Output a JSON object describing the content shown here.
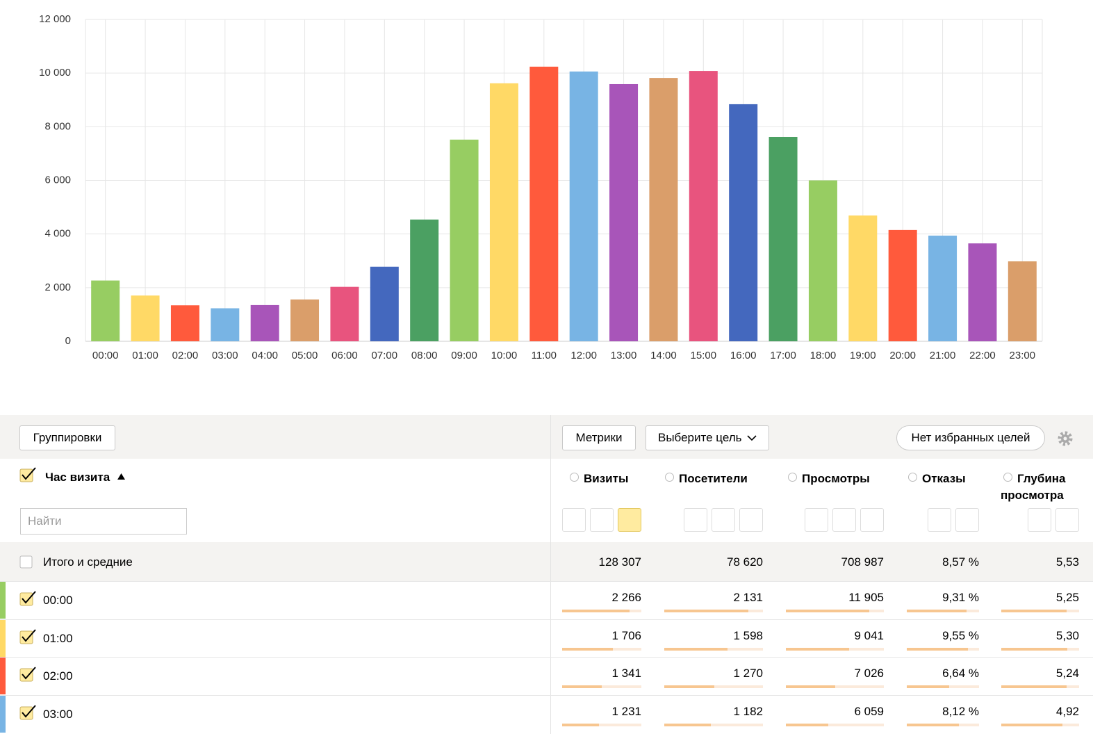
{
  "chart_data": {
    "type": "bar",
    "categories": [
      "00:00",
      "01:00",
      "02:00",
      "03:00",
      "04:00",
      "05:00",
      "06:00",
      "07:00",
      "08:00",
      "09:00",
      "10:00",
      "11:00",
      "12:00",
      "13:00",
      "14:00",
      "15:00",
      "16:00",
      "17:00",
      "18:00",
      "19:00",
      "20:00",
      "21:00",
      "22:00",
      "23:00"
    ],
    "values": [
      2266,
      1706,
      1341,
      1231,
      1350,
      1560,
      2030,
      2780,
      4540,
      7520,
      9620,
      10240,
      10060,
      9590,
      9820,
      10080,
      8840,
      7620,
      6000,
      4690,
      4150,
      3940,
      3650,
      2980
    ],
    "colors": [
      "#97cd62",
      "#ffd966",
      "#ff5a3c",
      "#78b4e4",
      "#a855b9",
      "#da9e6a",
      "#e8547e",
      "#4468be",
      "#4ba062",
      "#97cd62",
      "#ffd966",
      "#ff5a3c",
      "#78b4e4",
      "#a855b9",
      "#da9e6a",
      "#e8547e",
      "#4468be",
      "#4ba062",
      "#97cd62",
      "#ffd966",
      "#ff5a3c",
      "#78b4e4",
      "#a855b9",
      "#da9e6a"
    ],
    "ylim": [
      0,
      12000
    ],
    "yticks": [
      0,
      {
        "value": 2000,
        "label": "2 000"
      },
      {
        "value": 4000,
        "label": "4 000"
      },
      {
        "value": 6000,
        "label": "6 000"
      },
      {
        "value": 8000,
        "label": "8 000"
      },
      {
        "value": 10000,
        "label": "10 000"
      },
      {
        "value": 12000,
        "label": "12 000"
      }
    ],
    "grid": true
  },
  "toolbar": {
    "groupings": "Группировки",
    "metrics": "Метрики",
    "goal": "Выберите цель",
    "favorites": "Нет избранных целей"
  },
  "table": {
    "dimension": "Час визита",
    "search_placeholder": "Найти",
    "columns": [
      "Визиты",
      "Посетители",
      "Просмотры",
      "Отказы",
      "Глубина просмотра"
    ],
    "totals": {
      "label": "Итого и средние",
      "cells": [
        "128 307",
        "78 620",
        "708 987",
        "8,57 %",
        "5,53"
      ]
    },
    "rows": [
      {
        "label": "00:00",
        "values": [
          2266,
          2131,
          11905,
          9.31,
          5.25
        ],
        "value_labels": [
          "2 266",
          "2 131",
          "11 905",
          "9,31 %",
          "5,25"
        ]
      },
      {
        "label": "01:00",
        "values": [
          1706,
          1598,
          9041,
          9.55,
          5.3
        ],
        "value_labels": [
          "1 706",
          "1 598",
          "9 041",
          "9,55 %",
          "5,30"
        ]
      },
      {
        "label": "02:00",
        "values": [
          1341,
          1270,
          7026,
          6.64,
          5.24
        ],
        "value_labels": [
          "1 341",
          "1 270",
          "7 026",
          "6,64 %",
          "5,24"
        ]
      },
      {
        "label": "03:00",
        "values": [
          1231,
          1182,
          6059,
          8.12,
          4.92
        ],
        "value_labels": [
          "1 231",
          "1 182",
          "6 059",
          "8,12 %",
          "4,92"
        ]
      }
    ]
  }
}
